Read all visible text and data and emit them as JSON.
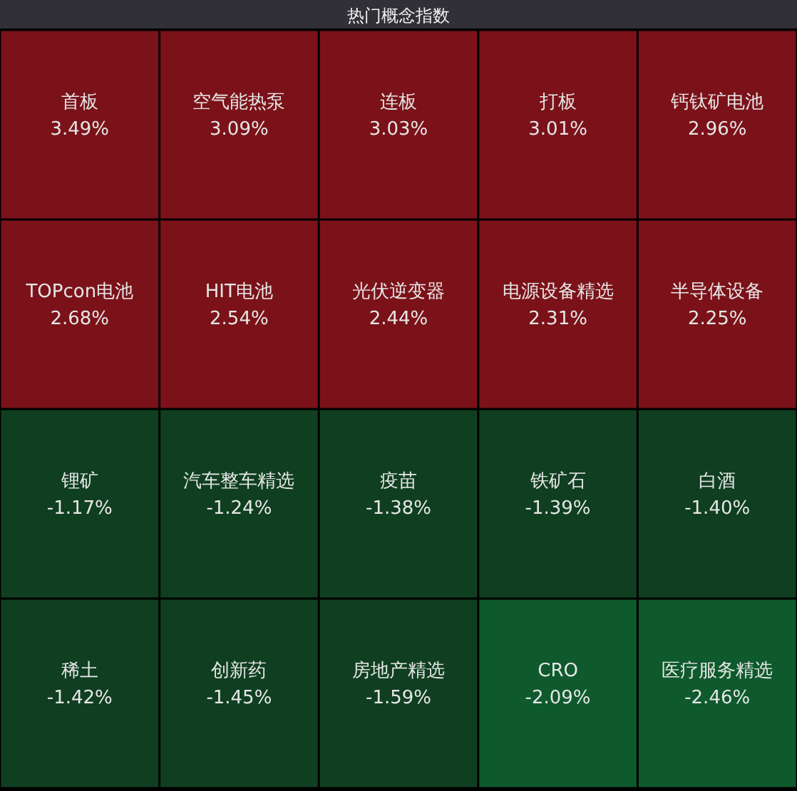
{
  "chart_data": {
    "type": "other",
    "title": "热门概念指数",
    "categories": [
      "首板",
      "空气能热泵",
      "连板",
      "打板",
      "钙钛矿电池",
      "TOPcon电池",
      "HIT电池",
      "光伏逆变器",
      "电源设备精选",
      "半导体设备",
      "锂矿",
      "汽车整车精选",
      "疫苗",
      "铁矿石",
      "白酒",
      "稀土",
      "创新药",
      "房地产精选",
      "CRO",
      "医疗服务精选"
    ],
    "values": [
      3.49,
      3.09,
      3.03,
      3.01,
      2.96,
      2.68,
      2.54,
      2.44,
      2.31,
      2.25,
      -1.17,
      -1.24,
      -1.38,
      -1.39,
      -1.4,
      -1.42,
      -1.45,
      -1.59,
      -2.09,
      -2.46
    ],
    "value_labels": [
      "3.49%",
      "3.09%",
      "3.03%",
      "3.01%",
      "2.96%",
      "2.68%",
      "2.54%",
      "2.44%",
      "2.31%",
      "2.25%",
      "-1.17%",
      "-1.24%",
      "-1.38%",
      "-1.39%",
      "-1.40%",
      "-1.42%",
      "-1.45%",
      "-1.59%",
      "-2.09%",
      "-2.46%"
    ],
    "colors": [
      "#7b1219",
      "#7b1219",
      "#7b1219",
      "#7b1219",
      "#7b1219",
      "#7b1219",
      "#7b1219",
      "#7b1219",
      "#7b1219",
      "#7b1219",
      "#0f3f20",
      "#0f3f20",
      "#0f3f20",
      "#0f3f20",
      "#0f3f20",
      "#0f3f20",
      "#0f3f20",
      "#0f3f20",
      "#0e5a2c",
      "#0e5a2c"
    ]
  }
}
